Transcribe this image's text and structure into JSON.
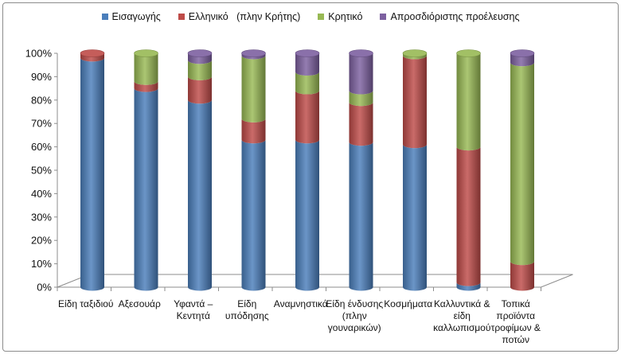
{
  "chart_data": {
    "type": "bar",
    "stacked": true,
    "percent": true,
    "three_d": true,
    "categories": [
      "Είδη ταξιδιού",
      "Αξεσουάρ",
      "Υφαντά – Κεντητά",
      "Είδη υπόδησης",
      "Αναμνηστικά",
      "Είδη ένδυσης (πλην γουναρικών)",
      "Κοσμήματα",
      "Καλλυντικά & είδη καλλωπισμού",
      "Τοπικά προϊόντα τροφίμων & ποτών"
    ],
    "category_label_lines": [
      [
        "Είδη ταξιδιού"
      ],
      [
        "Αξεσουάρ"
      ],
      [
        "Υφαντά –",
        "Κεντητά"
      ],
      [
        "Είδη",
        "υπόδησης"
      ],
      [
        "Αναμνηστικά"
      ],
      [
        "Είδη ένδυσης",
        "(πλην",
        "γουναρικών)"
      ],
      [
        "Κοσμήματα"
      ],
      [
        "Καλλυντικά &",
        "είδη",
        "καλλωπισμού"
      ],
      [
        "Τοπικά",
        "προϊόντα",
        "τροφίμων &",
        "ποτών"
      ]
    ],
    "series": [
      {
        "name": "Εισαγωγής",
        "color": "#4a7ebb",
        "values": [
          98,
          85,
          80,
          63,
          63,
          62,
          61,
          2,
          0
        ]
      },
      {
        "name": "Ελληνικό   (πλην Κρήτης)",
        "color": "#be4b48",
        "values": [
          2,
          3,
          10,
          9,
          21,
          17,
          38,
          58,
          11
        ]
      },
      {
        "name": "Κρητικό",
        "color": "#98b954",
        "values": [
          0,
          12,
          7,
          27,
          8,
          5,
          1,
          40,
          85
        ]
      },
      {
        "name": "Απροσδιόριστης προέλευσης",
        "color": "#7d60a0",
        "values": [
          0,
          0,
          3,
          1,
          8,
          16,
          0,
          0,
          4
        ]
      }
    ],
    "yticks": [
      "0%",
      "10%",
      "20%",
      "30%",
      "40%",
      "50%",
      "60%",
      "70%",
      "80%",
      "90%",
      "100%"
    ],
    "ylim": [
      0,
      100
    ],
    "legend_position": "top",
    "grid": false
  }
}
